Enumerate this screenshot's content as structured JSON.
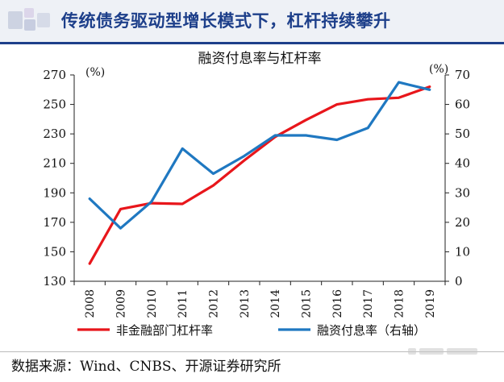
{
  "header": {
    "title": "传统债务驱动型增长模式下，杠杆持续攀升"
  },
  "footer": {
    "source": "数据来源：Wind、CNBS、开源证券研究所"
  },
  "colors": {
    "header_text": "#1d3f8a",
    "series_left": "#e8161b",
    "series_right": "#1f78c1"
  },
  "chart_data": {
    "type": "line",
    "title": "融资付息率与杠杆率",
    "x": [
      "2008",
      "2009",
      "2010",
      "2011",
      "2012",
      "2013",
      "2014",
      "2015",
      "2016",
      "2017",
      "2018",
      "2019"
    ],
    "y_left": {
      "unit_label": "(%)",
      "range": [
        130,
        270
      ],
      "ticks": [
        130,
        150,
        170,
        190,
        210,
        230,
        250,
        270
      ]
    },
    "y_right": {
      "unit_label": "(%)",
      "range": [
        0,
        70
      ],
      "ticks": [
        0,
        10,
        20,
        30,
        40,
        50,
        60,
        70
      ]
    },
    "grid": false,
    "legend_position": "bottom",
    "series": [
      {
        "name": "非金融部门杠杆率",
        "axis": "left",
        "color": "#e8161b",
        "values": [
          142,
          179,
          183,
          182.5,
          195,
          212,
          228,
          239.5,
          250,
          253.5,
          254.5,
          262
        ]
      },
      {
        "name": "融资付息率（右轴）",
        "axis": "right",
        "color": "#1f78c1",
        "values": [
          28,
          18,
          27,
          45,
          36.5,
          42.5,
          49.5,
          49.5,
          48,
          52,
          67.5,
          65
        ]
      }
    ]
  }
}
